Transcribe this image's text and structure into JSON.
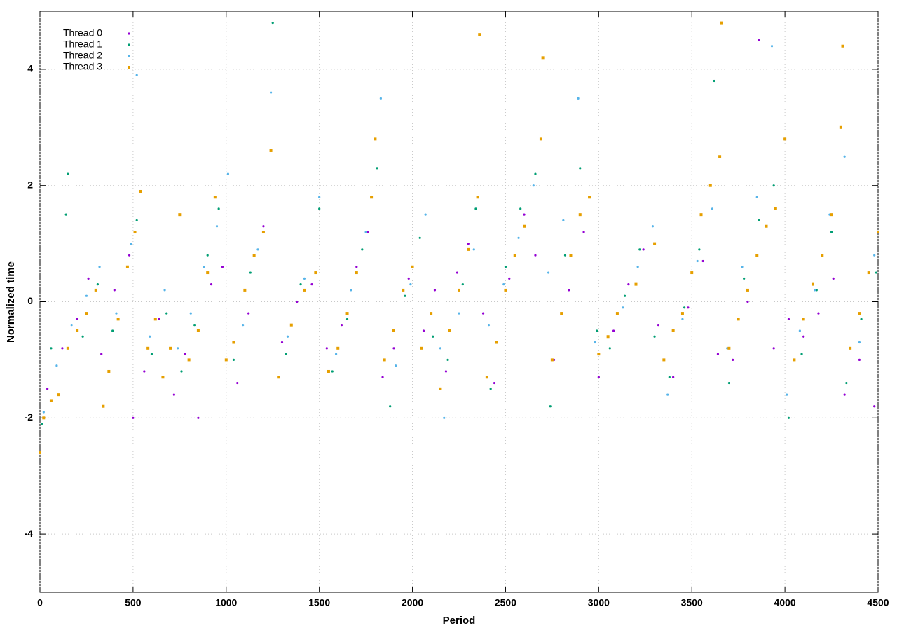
{
  "chart_data": {
    "type": "scatter",
    "x_label": "Period",
    "y_label": "Normalized time",
    "xlim": [
      0,
      4500
    ],
    "xticks": [
      0,
      500,
      1000,
      1500,
      2000,
      2500,
      3000,
      3500,
      4000,
      4500
    ],
    "ylim": [
      -5,
      5
    ],
    "yticks": [
      -4,
      -2,
      0,
      2,
      4
    ],
    "grid": true,
    "legend": "top-left",
    "series": [
      {
        "name": "Thread 0",
        "color": "#9400d3",
        "marker": "dot",
        "x": [
          40,
          120,
          200,
          260,
          330,
          400,
          480,
          500,
          560,
          640,
          720,
          780,
          850,
          920,
          980,
          1060,
          1120,
          1200,
          1300,
          1380,
          1460,
          1540,
          1620,
          1700,
          1760,
          1840,
          1900,
          1980,
          2060,
          2120,
          2180,
          2240,
          2300,
          2380,
          2440,
          2520,
          2600,
          2660,
          2760,
          2840,
          2920,
          3000,
          3080,
          3160,
          3240,
          3320,
          3400,
          3480,
          3560,
          3640,
          3720,
          3800,
          3860,
          3940,
          4020,
          4100,
          4180,
          4260,
          4320,
          4400,
          4480
        ],
        "values": [
          -1.5,
          -0.8,
          -0.3,
          0.4,
          -0.9,
          0.2,
          0.8,
          -2.0,
          -1.2,
          -0.3,
          -1.6,
          -0.9,
          -2.0,
          0.3,
          0.6,
          -1.4,
          -0.2,
          1.3,
          -0.7,
          0.0,
          0.3,
          -0.8,
          -0.4,
          0.6,
          1.2,
          -1.3,
          -0.8,
          0.4,
          -0.5,
          0.2,
          -1.2,
          0.5,
          1.0,
          -0.2,
          -1.4,
          0.4,
          1.5,
          0.8,
          -1.0,
          0.2,
          1.2,
          -1.3,
          -0.5,
          0.3,
          0.9,
          -0.4,
          -1.3,
          -0.1,
          0.7,
          -0.9,
          -1.0,
          0.0,
          4.5,
          -0.8,
          -0.3,
          -0.6,
          -0.2,
          0.4,
          -1.6,
          -1.0,
          -1.8
        ]
      },
      {
        "name": "Thread 1",
        "color": "#009e73",
        "marker": "dot",
        "x": [
          10,
          60,
          140,
          150,
          230,
          310,
          390,
          470,
          520,
          600,
          680,
          760,
          830,
          900,
          960,
          1040,
          1130,
          1250,
          1320,
          1400,
          1500,
          1570,
          1650,
          1730,
          1810,
          1880,
          1960,
          2040,
          2110,
          2190,
          2270,
          2340,
          2420,
          2500,
          2580,
          2660,
          2740,
          2820,
          2900,
          2990,
          3060,
          3140,
          3220,
          3300,
          3380,
          3460,
          3540,
          3620,
          3700,
          3780,
          3860,
          3940,
          4020,
          4090,
          4170,
          4250,
          4330,
          4410,
          4490
        ],
        "values": [
          -2.1,
          -0.8,
          1.5,
          2.2,
          -0.6,
          0.3,
          -0.5,
          0.6,
          1.4,
          -0.9,
          -0.2,
          -1.2,
          -0.4,
          0.8,
          1.6,
          -1.0,
          0.5,
          4.8,
          -0.9,
          0.3,
          1.6,
          -1.2,
          -0.3,
          0.9,
          2.3,
          -1.8,
          0.1,
          1.1,
          -0.6,
          -1.0,
          0.3,
          1.6,
          -1.5,
          0.6,
          1.6,
          2.2,
          -1.8,
          0.8,
          2.3,
          -0.5,
          -0.8,
          0.1,
          0.9,
          -0.6,
          -1.3,
          -0.1,
          0.9,
          3.8,
          -1.4,
          0.4,
          1.4,
          2.0,
          -2.0,
          -0.9,
          0.2,
          1.2,
          -1.4,
          -0.3,
          0.5
        ]
      },
      {
        "name": "Thread 2",
        "color": "#56b4e9",
        "marker": "dot",
        "x": [
          20,
          90,
          170,
          250,
          320,
          410,
          490,
          520,
          590,
          670,
          740,
          810,
          880,
          950,
          1010,
          1090,
          1170,
          1240,
          1330,
          1420,
          1500,
          1590,
          1670,
          1750,
          1830,
          1910,
          1990,
          2070,
          2150,
          2170,
          2250,
          2330,
          2410,
          2490,
          2570,
          2650,
          2730,
          2810,
          2890,
          2980,
          3050,
          3130,
          3210,
          3290,
          3370,
          3450,
          3530,
          3610,
          3690,
          3770,
          3850,
          3930,
          4010,
          4080,
          4160,
          4240,
          4320,
          4400,
          4480
        ],
        "values": [
          -1.9,
          -1.1,
          -0.4,
          0.1,
          0.6,
          -0.2,
          1.0,
          3.9,
          -0.6,
          0.2,
          -0.8,
          -0.2,
          0.6,
          1.3,
          2.2,
          -0.4,
          0.9,
          3.6,
          -0.6,
          0.4,
          1.8,
          -0.9,
          0.2,
          1.2,
          3.5,
          -1.1,
          0.3,
          1.5,
          -0.8,
          -2.0,
          -0.2,
          0.9,
          -0.4,
          0.3,
          1.1,
          2.0,
          0.5,
          1.4,
          3.5,
          -0.7,
          -0.6,
          -0.1,
          0.6,
          1.3,
          -1.6,
          -0.3,
          0.7,
          1.6,
          -0.8,
          0.6,
          1.8,
          4.4,
          -1.6,
          -0.5,
          0.2,
          1.5,
          2.5,
          -0.7,
          0.8
        ]
      },
      {
        "name": "Thread 3",
        "color": "#e69f00",
        "marker": "square",
        "x": [
          0,
          20,
          60,
          100,
          150,
          200,
          250,
          300,
          340,
          370,
          420,
          470,
          510,
          540,
          580,
          620,
          660,
          700,
          750,
          800,
          850,
          900,
          940,
          1000,
          1040,
          1100,
          1150,
          1200,
          1240,
          1280,
          1350,
          1420,
          1480,
          1550,
          1600,
          1650,
          1700,
          1780,
          1800,
          1850,
          1900,
          1950,
          2000,
          2050,
          2100,
          2150,
          2200,
          2250,
          2300,
          2350,
          2360,
          2400,
          2450,
          2500,
          2550,
          2600,
          2690,
          2700,
          2750,
          2800,
          2850,
          2900,
          2950,
          3000,
          3050,
          3100,
          3200,
          3300,
          3350,
          3400,
          3450,
          3500,
          3550,
          3600,
          3650,
          3660,
          3700,
          3750,
          3800,
          3850,
          3900,
          3950,
          4000,
          4050,
          4100,
          4150,
          4200,
          4250,
          4300,
          4310,
          4350,
          4400,
          4450,
          4500
        ],
        "values": [
          -2.6,
          -2.0,
          -1.7,
          -1.6,
          -0.8,
          -0.5,
          -0.2,
          0.2,
          -1.8,
          -1.2,
          -0.3,
          0.6,
          1.2,
          1.9,
          -0.8,
          -0.3,
          -1.3,
          -0.8,
          1.5,
          -1.0,
          -0.5,
          0.5,
          1.8,
          -1.0,
          -0.7,
          0.2,
          0.8,
          1.2,
          2.6,
          -1.3,
          -0.4,
          0.2,
          0.5,
          -1.2,
          -0.8,
          -0.2,
          0.5,
          1.8,
          2.8,
          -1.0,
          -0.5,
          0.2,
          0.6,
          -0.8,
          -0.2,
          -1.5,
          -0.5,
          0.2,
          0.9,
          1.8,
          4.6,
          -1.3,
          -0.7,
          0.2,
          0.8,
          1.3,
          2.8,
          4.2,
          -1.0,
          -0.2,
          0.8,
          1.5,
          1.8,
          -0.9,
          -0.6,
          -0.2,
          0.3,
          1.0,
          -1.0,
          -0.5,
          -0.2,
          0.5,
          1.5,
          2.0,
          2.5,
          4.8,
          -0.8,
          -0.3,
          0.2,
          0.8,
          1.3,
          1.6,
          2.8,
          -1.0,
          -0.3,
          0.3,
          0.8,
          1.5,
          3.0,
          4.4,
          -0.8,
          -0.2,
          0.5,
          1.2
        ]
      }
    ]
  }
}
